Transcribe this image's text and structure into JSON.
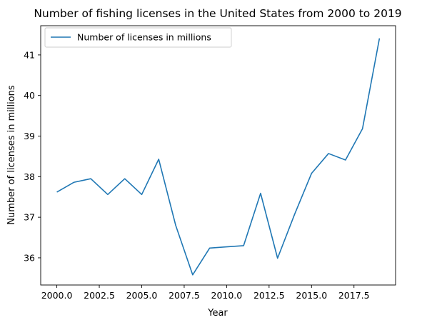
{
  "chart_data": {
    "type": "line",
    "title": "Number of fishing licenses in the United States from 2000 to 2019",
    "xlabel": "Year",
    "ylabel": "Number of licenses in millions",
    "x": [
      2000,
      2001,
      2002,
      2003,
      2004,
      2005,
      2006,
      2007,
      2008,
      2009,
      2010,
      2011,
      2012,
      2013,
      2014,
      2015,
      2016,
      2017,
      2018,
      2019
    ],
    "series": [
      {
        "name": "Number of licenses in millions",
        "color": "#1f77b4",
        "values": [
          37.62,
          37.86,
          37.95,
          37.56,
          37.95,
          37.56,
          38.43,
          36.8,
          35.58,
          36.24,
          36.27,
          36.3,
          37.59,
          35.99,
          37.07,
          38.08,
          38.57,
          38.41,
          39.18,
          41.41
        ]
      }
    ],
    "xlim": [
      1999.05,
      2019.95
    ],
    "ylim": [
      35.33,
      41.72
    ],
    "xticks": [
      2000.0,
      2002.5,
      2005.0,
      2007.5,
      2010.0,
      2012.5,
      2015.0,
      2017.5
    ],
    "xtick_labels": [
      "2000.0",
      "2002.5",
      "2005.0",
      "2007.5",
      "2010.0",
      "2012.5",
      "2015.0",
      "2017.5"
    ],
    "yticks": [
      36,
      37,
      38,
      39,
      40,
      41
    ],
    "ytick_labels": [
      "36",
      "37",
      "38",
      "39",
      "40",
      "41"
    ],
    "legend": {
      "placement": "upper-left",
      "entries": [
        "Number of licenses in millions"
      ]
    },
    "grid": false
  }
}
